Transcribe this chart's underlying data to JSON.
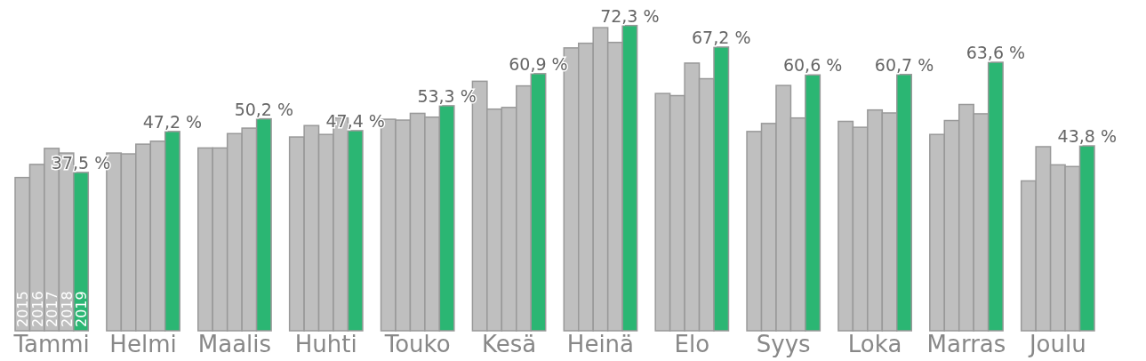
{
  "chart_data": {
    "type": "bar",
    "categories": [
      "Tammi",
      "Helmi",
      "Maalis",
      "Huhti",
      "Touko",
      "Kesä",
      "Heinä",
      "Elo",
      "Syys",
      "Loka",
      "Marras",
      "Joulu"
    ],
    "series": [
      {
        "name": "2015",
        "color": "#bfbfbf",
        "values": [
          36.3,
          42.1,
          43.3,
          45.9,
          50.1,
          59.1,
          67.0,
          56.2,
          47.2,
          49.6,
          46.5,
          35.5
        ]
      },
      {
        "name": "2016",
        "color": "#bfbfbf",
        "values": [
          39.4,
          41.9,
          43.3,
          48.6,
          49.9,
          52.5,
          68.1,
          55.7,
          49.1,
          48.2,
          49.8,
          43.6
        ]
      },
      {
        "name": "2017",
        "color": "#bfbfbf",
        "values": [
          43.2,
          44.2,
          46.7,
          46.5,
          51.5,
          52.9,
          71.8,
          63.4,
          58.1,
          52.3,
          53.6,
          39.3
        ]
      },
      {
        "name": "2018",
        "color": "#bfbfbf",
        "values": [
          42.1,
          44.9,
          48.0,
          50.4,
          50.6,
          58.0,
          68.3,
          59.7,
          50.4,
          51.6,
          51.4,
          38.9
        ]
      },
      {
        "name": "2019",
        "color": "#2bb673",
        "values": [
          37.5,
          47.2,
          50.2,
          47.4,
          53.3,
          60.9,
          72.3,
          67.2,
          60.6,
          60.7,
          63.6,
          43.8
        ],
        "value_labels": [
          "37,5 %",
          "47,2 %",
          "50,2 %",
          "47,4 %",
          "53,3 %",
          "60,9 %",
          "72,3 %",
          "67,2 %",
          "60,6 %",
          "60,7 %",
          "63,6 %",
          "43,8 %"
        ]
      }
    ]
  }
}
